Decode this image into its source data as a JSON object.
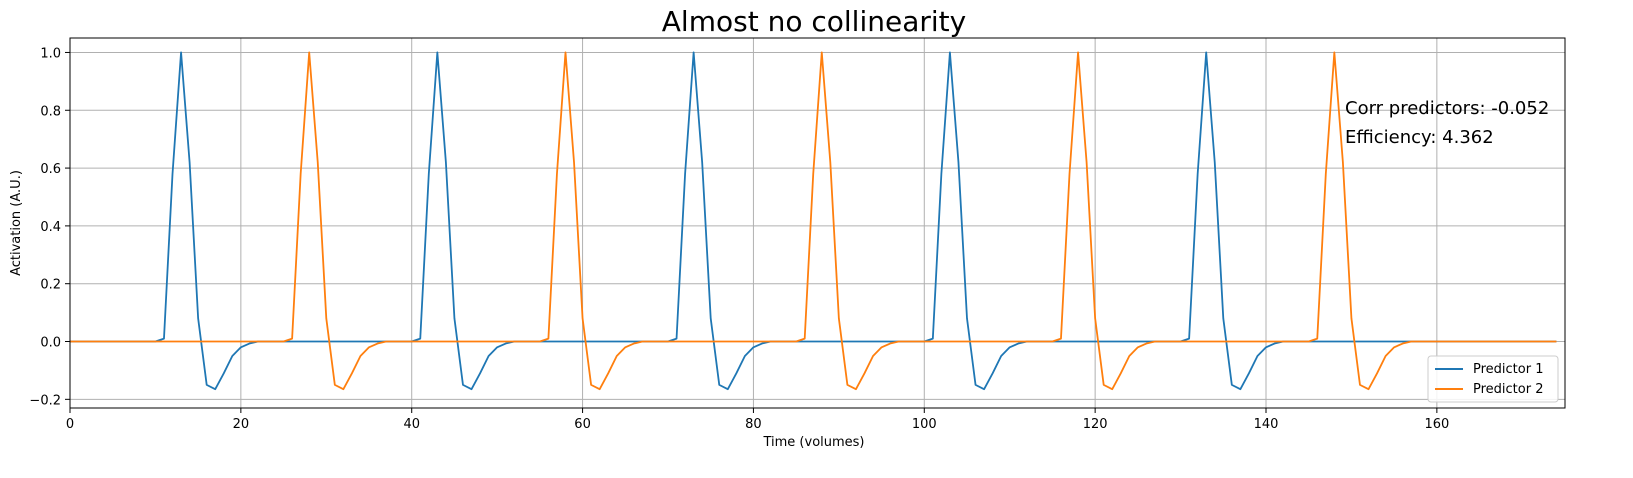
{
  "chart_data": {
    "type": "line",
    "title": "Almost no collinearity",
    "xlabel": "Time (volumes)",
    "ylabel": "Activation (A.U.)",
    "xlim": [
      0,
      175
    ],
    "ylim": [
      -0.23,
      1.05
    ],
    "xticks": [
      0,
      20,
      40,
      60,
      80,
      100,
      120,
      140,
      160
    ],
    "yticks": [
      -0.2,
      0.0,
      0.2,
      0.4,
      0.6,
      0.8,
      1.0
    ],
    "ytick_labels": [
      "−0.2",
      "0.0",
      "0.2",
      "0.4",
      "0.6",
      "0.8",
      "1.0"
    ],
    "grid": true,
    "legend_position": "lower-right",
    "response_shape": {
      "offsets": [
        0,
        1,
        2,
        3,
        4,
        5,
        6,
        7,
        8,
        9,
        10,
        11,
        12
      ],
      "values": [
        0.0,
        0.01,
        0.58,
        1.0,
        0.62,
        0.08,
        -0.15,
        -0.165,
        -0.11,
        -0.05,
        -0.02,
        -0.007,
        0.0
      ]
    },
    "series": [
      {
        "name": "Predictor 1",
        "color": "#1f77b4",
        "onsets": [
          10,
          40,
          70,
          100,
          130
        ]
      },
      {
        "name": "Predictor 2",
        "color": "#ff7f0e",
        "onsets": [
          25,
          55,
          85,
          115,
          145
        ]
      }
    ],
    "x_end": 174,
    "annotations": [
      {
        "text": "Corr predictors: -0.052"
      },
      {
        "text": "Efficiency: 4.362"
      }
    ]
  }
}
